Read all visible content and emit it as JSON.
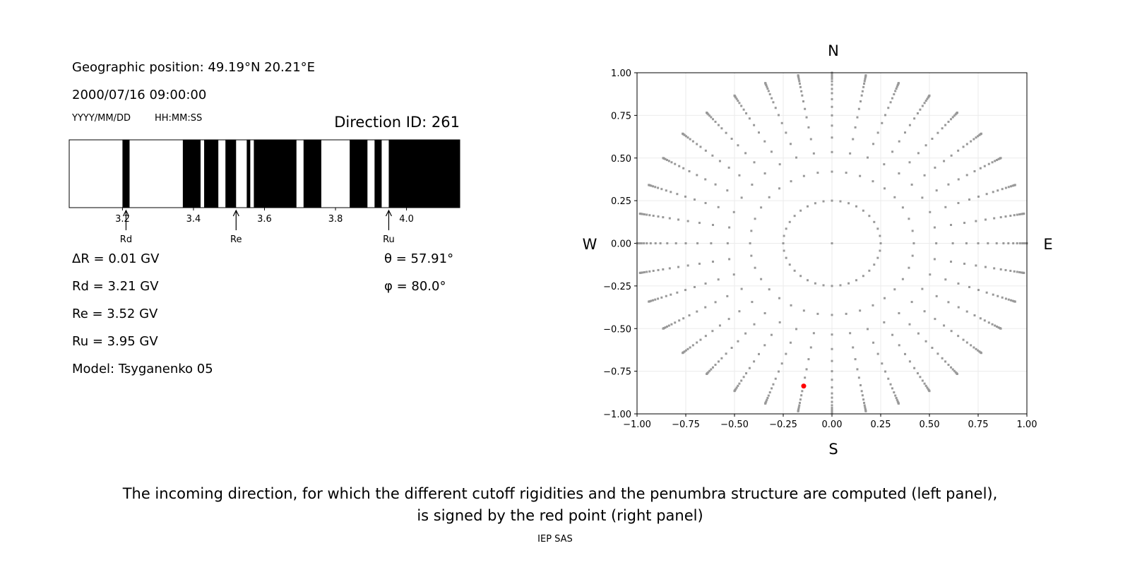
{
  "left_panel": {
    "geo_position": "Geographic position: 49.19°N 20.21°E",
    "datetime": "2000/07/16 09:00:00",
    "date_format": "YYYY/MM/DD",
    "time_format": "HH:MM:SS",
    "direction_id": "Direction ID: 261",
    "delta_r": "ΔR = 0.01 GV",
    "rd": "Rd = 3.21 GV",
    "re": "Re = 3.52 GV",
    "ru": "Ru = 3.95 GV",
    "model": "Model: Tsyganenko 05",
    "theta": "θ = 57.91°",
    "phi": "φ = 80.0°"
  },
  "caption": {
    "line1": "The incoming direction, for which the different cutoff rigidities and the penumbra structure are computed (left panel),",
    "line2": "is signed by the red point (right panel)",
    "credit": "IEP SAS"
  },
  "chart_data": [
    {
      "type": "penumbra-bar",
      "xlim": [
        3.05,
        4.15
      ],
      "xticks": [
        3.2,
        3.4,
        3.6,
        3.8,
        4.0
      ],
      "xtick_labels": [
        "3.2",
        "3.4",
        "3.6",
        "3.8",
        "4.0"
      ],
      "forbidden_bands": [
        [
          3.2,
          3.22
        ],
        [
          3.37,
          3.42
        ],
        [
          3.43,
          3.47
        ],
        [
          3.49,
          3.52
        ],
        [
          3.55,
          3.56
        ],
        [
          3.57,
          3.69
        ],
        [
          3.71,
          3.76
        ],
        [
          3.84,
          3.89
        ],
        [
          3.91,
          3.93
        ],
        [
          3.95,
          4.15
        ]
      ],
      "markers": [
        {
          "label": "Rd",
          "value": 3.21
        },
        {
          "label": "Re",
          "value": 3.52
        },
        {
          "label": "Ru",
          "value": 3.95
        }
      ],
      "colors": {
        "forbidden": "#000000",
        "allowed": "#ffffff"
      }
    },
    {
      "type": "scatter",
      "xlim": [
        -1,
        1
      ],
      "ylim": [
        -1,
        1
      ],
      "xticks": [
        -1,
        -0.75,
        -0.5,
        -0.25,
        0,
        0.25,
        0.5,
        0.75,
        1
      ],
      "tick_labels": [
        "−1.00",
        "−0.75",
        "−0.50",
        "−0.25",
        "0.00",
        "0.25",
        "0.50",
        "0.75",
        "1.00"
      ],
      "grid": true,
      "compass": {
        "north": "N",
        "south": "S",
        "west": "W",
        "east": "E"
      },
      "grid_azimuth_step_deg": 10,
      "grid_radii": [
        0.25,
        0.42,
        0.535,
        0.62,
        0.69,
        0.75,
        0.8,
        0.845,
        0.88,
        0.905,
        0.93,
        0.95,
        0.965,
        0.977,
        0.987,
        0.994,
        0.998,
        1.0
      ],
      "center_point": [
        0,
        0
      ],
      "highlight_point": {
        "x": -0.145,
        "y": -0.837,
        "color": "#ff0000"
      },
      "colors": {
        "grid_points": "#999999",
        "highlight": "#ff0000"
      }
    }
  ]
}
